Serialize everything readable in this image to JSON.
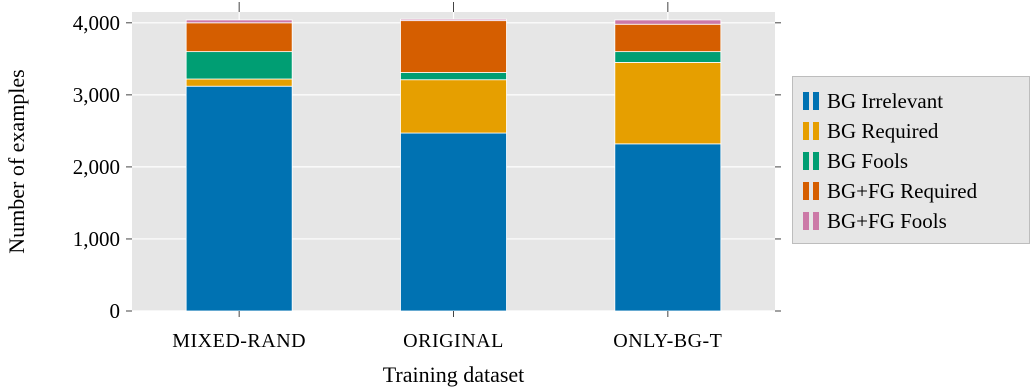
{
  "chart_data": {
    "type": "bar",
    "stacked": true,
    "categories": [
      "Mixed-Rand",
      "Original",
      "Only-BG-T"
    ],
    "category_display": [
      "MIXED-RAND",
      "ORIGINAL",
      "ONLY-BG-T"
    ],
    "series": [
      {
        "name": "BG Irrelevant",
        "color": "#0072b2",
        "values": [
          3120,
          2470,
          2320
        ]
      },
      {
        "name": "BG Required",
        "color": "#e69f00",
        "values": [
          100,
          740,
          1130
        ]
      },
      {
        "name": "BG Fools",
        "color": "#009e73",
        "values": [
          380,
          100,
          150
        ]
      },
      {
        "name": "BG+FG Required",
        "color": "#d55e00",
        "values": [
          400,
          720,
          380
        ]
      },
      {
        "name": "BG+FG Fools",
        "color": "#cc79a7",
        "values": [
          40,
          20,
          60
        ]
      }
    ],
    "xlabel": "Training dataset",
    "ylabel": "Number of examples",
    "ylim": [
      0,
      4150
    ],
    "yticks": [
      0,
      1000,
      2000,
      3000,
      4000
    ],
    "ytick_labels": [
      "0",
      "1,000",
      "2,000",
      "3,000",
      "4,000"
    ],
    "grid": true,
    "legend_position": "outside-right",
    "background_color": "#e6e6e6"
  }
}
